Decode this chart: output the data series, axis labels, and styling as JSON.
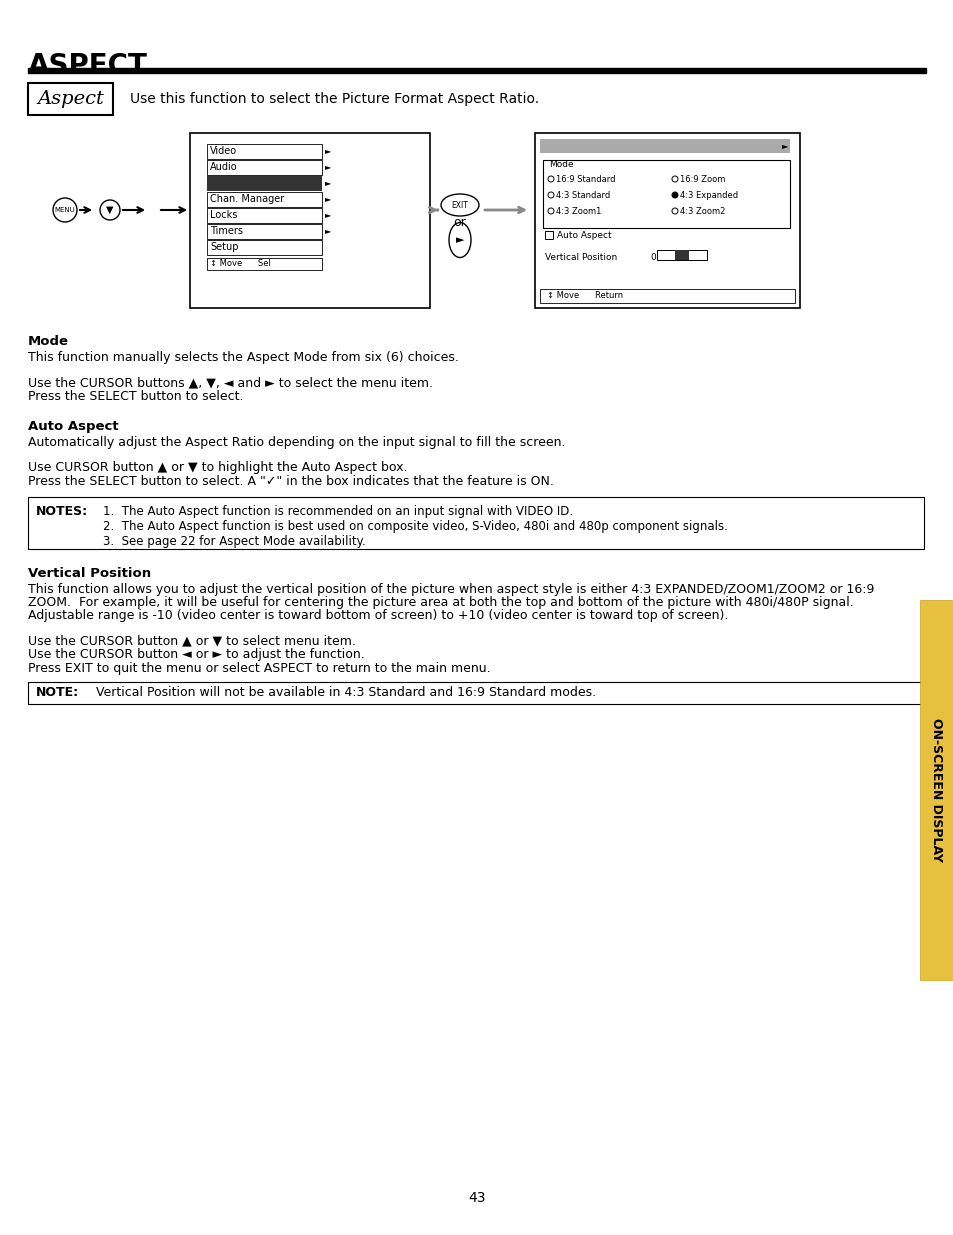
{
  "title": "ASPECT",
  "page_num": "43",
  "bg_color": "#ffffff",
  "text_color": "#1a1a1a",
  "aspect_box_text": "Aspect",
  "aspect_desc": "Use this function to select the Picture Format Aspect Ratio.",
  "section_mode_bold": "Mode",
  "section_mode_text": "This function manually selects the Aspect Mode from six (6) choices.",
  "section_mode_text2a": "Use the CURSOR buttons ▲, ▼, ◄ and ► to select the menu item.",
  "section_mode_text2b": "Press the SELECT button to select.",
  "section_autoaspect_bold": "Auto Aspect",
  "section_autoaspect_text": "Automatically adjust the Aspect Ratio depending on the input signal to fill the screen.",
  "section_autoaspect_text2a": "Use CURSOR button ▲ or ▼ to highlight the Auto Aspect box.",
  "section_autoaspect_text2b": "Press the SELECT button to select. A \"✓\" in the box indicates that the feature is ON.",
  "notes_label": "NOTES:",
  "notes_lines": [
    "1.  The Auto Aspect function is recommended on an input signal with VIDEO ID.",
    "2.  The Auto Aspect function is best used on composite video, S-Video, 480i and 480p component signals.",
    "3.  See page 22 for Aspect Mode availability."
  ],
  "section_vertpos_bold": "Vertical Position",
  "section_vertpos_line1": "This function allows you to adjust the vertical position of the picture when aspect style is either 4:3 EXPANDED/ZOOM1/ZOOM2 or 16:9",
  "section_vertpos_line2": "ZOOM.  For example, it will be useful for centering the picture area at both the top and bottom of the picture with 480i/480P signal.",
  "section_vertpos_line3": "Adjustable range is -10 (video center is toward bottom of screen) to +10 (video center is toward top of screen).",
  "section_vertpos_text2a": "Use the CURSOR button ▲ or ▼ to select menu item.",
  "section_vertpos_text2b": "Use the CURSOR button ◄ or ► to adjust the function.",
  "section_vertpos_text2c": "Press EXIT to quit the menu or select ASPECT to return to the main menu.",
  "note2_label": "NOTE:",
  "note2_text": "Vertical Position will not be available in 4:3 Standard and 16:9 Standard modes.",
  "sidebar_text": "ON-SCREEN DISPLAY",
  "menu_items": [
    "Video",
    "Audio",
    "",
    "Chan. Manager",
    "Locks",
    "Timers",
    "Setup"
  ],
  "menu_bottom": "↕ Move      Sel",
  "osd_mode_items_left": [
    "16:9 Standard",
    "4:3 Standard",
    "4:3 Zoom1"
  ],
  "osd_mode_items_right": [
    "16:9 Zoom",
    "4:3 Expanded",
    "4:3 Zoom2"
  ],
  "osd_auto_aspect": "Auto Aspect",
  "osd_vert_pos": "Vertical Position    0",
  "osd_bottom": "↕ Move      Return"
}
